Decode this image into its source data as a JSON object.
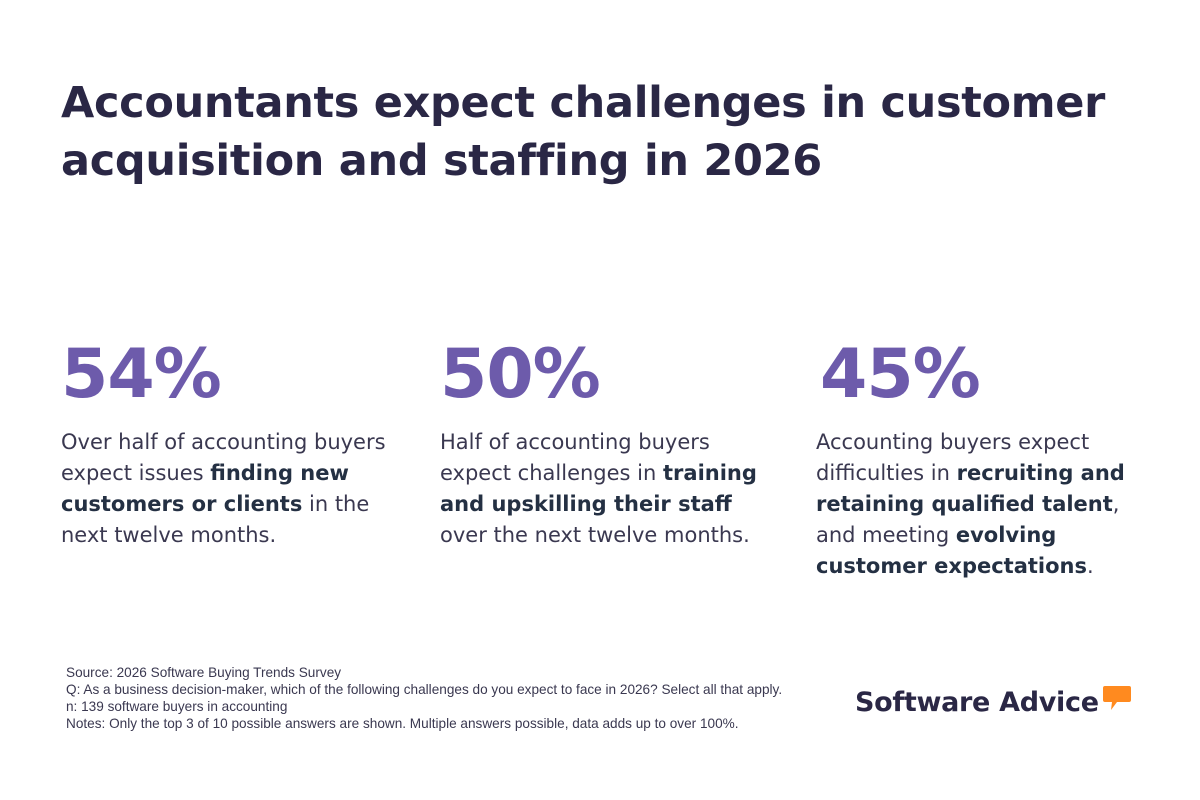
{
  "title": {
    "line1": "Accountants expect challenges in customer",
    "line2": "acquisition and staffing in 2026"
  },
  "stats": [
    {
      "value": "54%",
      "text_1": "Over half of accounting buyers expect issues ",
      "bold_1": "finding new customers or clients",
      "text_2": " in the next twelve months."
    },
    {
      "value": "50%",
      "text_1": "Half of accounting buyers expect challenges in ",
      "bold_1": "training and upskilling their staff",
      "text_2": " over the next twelve months."
    },
    {
      "value": "45%",
      "text_1": "Accounting buyers expect difficulties in ",
      "bold_1": "recruiting and retaining qualified talent",
      "text_2": ", and meeting ",
      "bold_2": "evolving customer expectations",
      "text_3": "."
    }
  ],
  "footnotes": {
    "source": "Source: 2026 Software Buying Trends Survey",
    "question": "Q: As a business decision-maker, which of the following challenges do you expect to face in 2026? Select all that apply.",
    "sample": "n: 139 software buyers in accounting",
    "notes": "Notes: Only the top 3 of 10 possible answers are shown. Multiple answers possible, data adds up to over 100%."
  },
  "logo": {
    "text": "Software Advice",
    "icon": "speech-bubble-icon",
    "icon_color": "#ff8a1f"
  },
  "colors": {
    "title": "#2a2745",
    "accent": "#6d5bab",
    "body": "#3a3850"
  }
}
